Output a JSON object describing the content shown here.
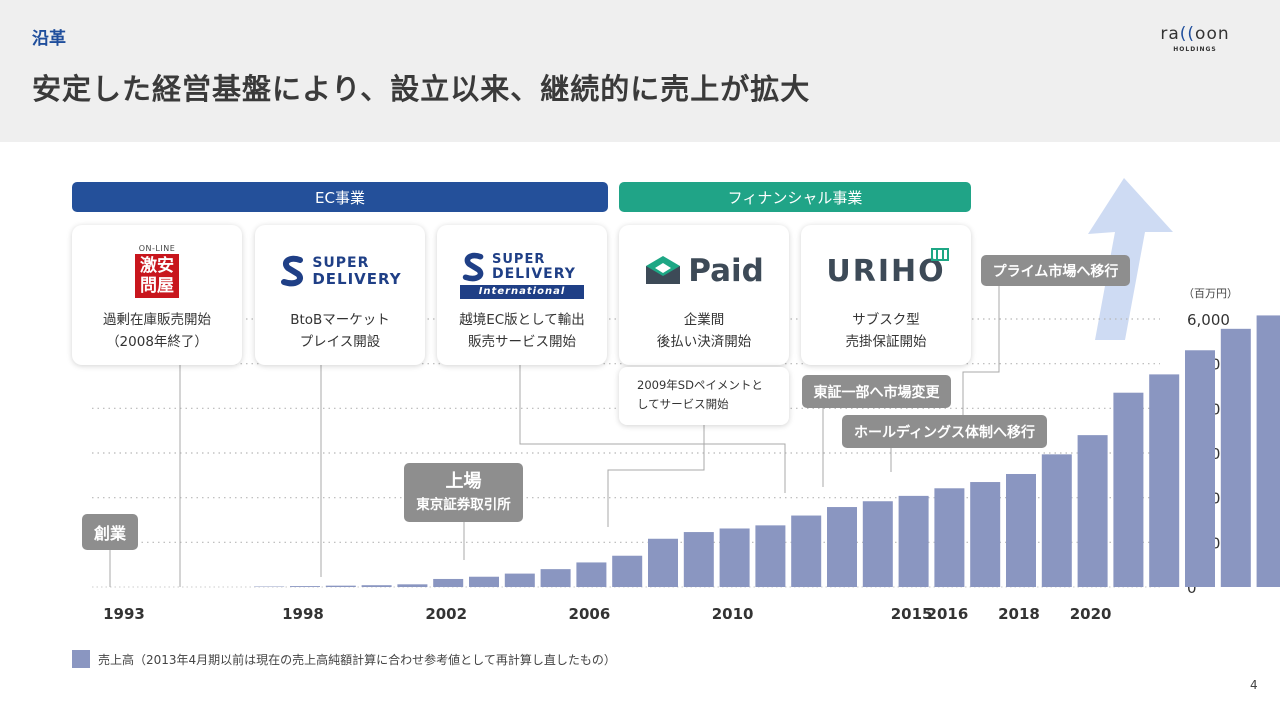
{
  "header": {
    "section_label": "沿革",
    "title": "安定した経営基盤により、設立以来、継続的に売上が拡大",
    "logo_main_a": "ra",
    "logo_main_paren": "((",
    "logo_main_b": "oon",
    "logo_sub": "HOLDINGS"
  },
  "bands": {
    "ec": "EC事業",
    "finance": "フィナンシャル事業"
  },
  "cards": [
    {
      "logo_badge_top": "ON-LINE",
      "logo_badge_main": "激安問屋",
      "line1": "過剰在庫販売開始",
      "line2": "（2008年終了）"
    },
    {
      "logo_l1": "SUPER",
      "logo_l2": "DELIVERY",
      "line1": "BtoBマーケット",
      "line2": "プレイス開設"
    },
    {
      "logo_l1": "SUPER",
      "logo_l2": "DELIVERY",
      "logo_l3": "International",
      "line1": "越境EC版として輸出",
      "line2": "販売サービス開始"
    },
    {
      "logo_text": "Paid",
      "line1": "企業間",
      "line2": "後払い決済開始"
    },
    {
      "logo_text": "URIHO",
      "line1": "サブスク型",
      "line2": "売掛保証開始"
    }
  ],
  "note": {
    "line1": "2009年SDペイメントと",
    "line2": "してサービス開始"
  },
  "tags": {
    "founding": "創業",
    "listing_l1": "上場",
    "listing_l2": "東京証券取引所",
    "prime": "プライム市場へ移行",
    "tosho1": "東証一部へ市場変更",
    "holdings": "ホールディングス体制へ移行"
  },
  "legend": "売上高（2013年4月期以前は現在の売上高純額計算に合わせ参考値として再計算し直したもの）",
  "page_number": "4",
  "colors": {
    "bar": "#8a96c1",
    "ec": "#24509a",
    "finance": "#20a487",
    "tag": "#8e8e8e",
    "arrow": "#c9d7f2"
  },
  "chart_data": {
    "type": "bar",
    "unit": "（百万円）",
    "categories": [
      "1993",
      "1994",
      "1995",
      "1996",
      "1997",
      "1998",
      "1999",
      "2000",
      "2001",
      "2002",
      "2003",
      "2004",
      "2005",
      "2006",
      "2007",
      "2008",
      "2009",
      "2010",
      "2011",
      "2012",
      "2013",
      "2014",
      "2015",
      "2016",
      "2017",
      "2018",
      "2019",
      "2020",
      "2021",
      "2022",
      "2023",
      "2024",
      "2025"
    ],
    "x_tick_labels": [
      "1993",
      "1998",
      "2002",
      "2006",
      "2010",
      "2015",
      "2016",
      "2018",
      "2020"
    ],
    "values": [
      0,
      0,
      0,
      0,
      10,
      20,
      30,
      40,
      60,
      180,
      230,
      300,
      400,
      550,
      700,
      1080,
      1230,
      1310,
      1380,
      1600,
      1790,
      1920,
      2040,
      2210,
      2350,
      2530,
      2970,
      3400,
      4350,
      4760,
      5300,
      5780,
      6080
    ],
    "yticks": [
      0,
      1000,
      2000,
      3000,
      4000,
      5000,
      6000
    ],
    "ytick_labels": [
      "0",
      "1,000",
      "2,000",
      "3,000",
      "4,000",
      "5,000",
      "6,000"
    ],
    "ylim": [
      0,
      6000
    ],
    "grid": true,
    "legend_position": "bottom-left"
  }
}
